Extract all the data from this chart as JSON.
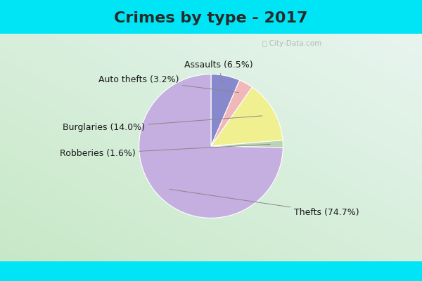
{
  "title": "Crimes by type - 2017",
  "labels": [
    "Thefts",
    "Burglaries",
    "Assaults",
    "Auto thefts",
    "Robberies"
  ],
  "values": [
    74.7,
    14.0,
    6.5,
    3.2,
    1.6
  ],
  "colors": [
    "#c5aee0",
    "#f0f090",
    "#8888cc",
    "#f0b8b8",
    "#b8d4b0"
  ],
  "background_cyan": "#00e5f5",
  "background_main_top": "#e8f5f0",
  "background_main_bottom": "#d0e8d8",
  "title_fontsize": 16,
  "label_fontsize": 9,
  "watermark": "@City-Data.com",
  "startangle": 90,
  "title_color": "#2a2a2a"
}
